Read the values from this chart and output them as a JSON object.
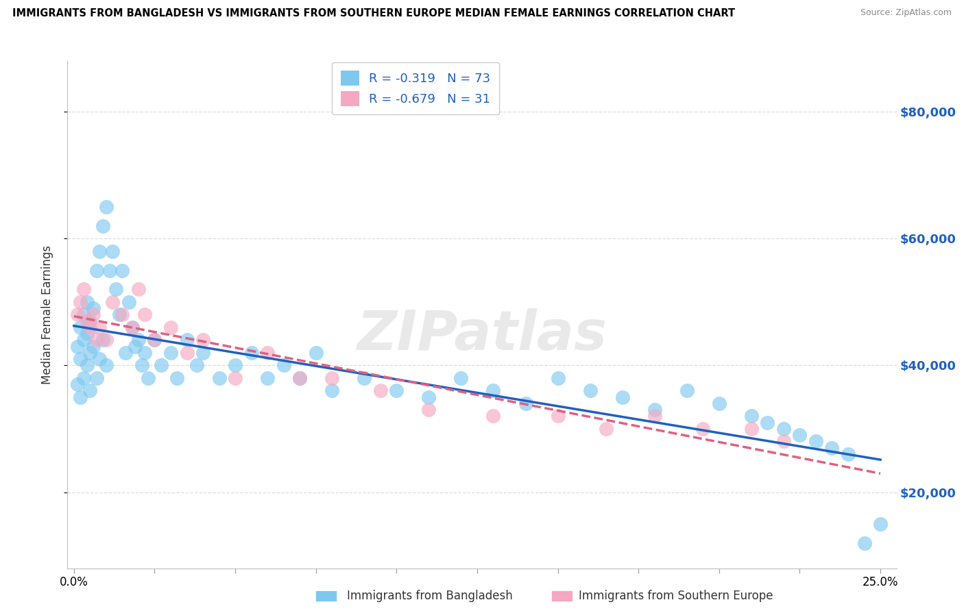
{
  "title": "IMMIGRANTS FROM BANGLADESH VS IMMIGRANTS FROM SOUTHERN EUROPE MEDIAN FEMALE EARNINGS CORRELATION CHART",
  "source": "Source: ZipAtlas.com",
  "ylabel": "Median Female Earnings",
  "ytick_vals": [
    20000,
    40000,
    60000,
    80000
  ],
  "ytick_labels": [
    "$20,000",
    "$40,000",
    "$60,000",
    "$80,000"
  ],
  "xlim_min": -0.002,
  "xlim_max": 0.255,
  "ylim_min": 8000,
  "ylim_max": 88000,
  "color_blue": "#7EC8F0",
  "color_pink": "#F5A8C0",
  "line_blue": "#2060C0",
  "line_pink": "#E06080",
  "r1": "-0.319",
  "n1": "73",
  "r2": "-0.679",
  "n2": "31",
  "watermark": "ZIPatlas",
  "legend1_label": "Immigrants from Bangladesh",
  "legend2_label": "Immigrants from Southern Europe",
  "background_color": "#FFFFFF",
  "grid_color": "#DDDDDD",
  "blue_x": [
    0.001,
    0.001,
    0.002,
    0.002,
    0.002,
    0.003,
    0.003,
    0.003,
    0.004,
    0.004,
    0.004,
    0.005,
    0.005,
    0.005,
    0.006,
    0.006,
    0.007,
    0.007,
    0.008,
    0.008,
    0.009,
    0.009,
    0.01,
    0.01,
    0.011,
    0.012,
    0.013,
    0.014,
    0.015,
    0.016,
    0.017,
    0.018,
    0.019,
    0.02,
    0.021,
    0.022,
    0.023,
    0.025,
    0.027,
    0.03,
    0.032,
    0.035,
    0.038,
    0.04,
    0.045,
    0.05,
    0.055,
    0.06,
    0.065,
    0.07,
    0.075,
    0.08,
    0.09,
    0.1,
    0.11,
    0.12,
    0.13,
    0.14,
    0.15,
    0.16,
    0.17,
    0.18,
    0.19,
    0.2,
    0.21,
    0.215,
    0.22,
    0.225,
    0.23,
    0.235,
    0.24,
    0.245,
    0.25
  ],
  "blue_y": [
    43000,
    37000,
    46000,
    41000,
    35000,
    48000,
    44000,
    38000,
    50000,
    45000,
    40000,
    47000,
    42000,
    36000,
    49000,
    43000,
    55000,
    38000,
    58000,
    41000,
    62000,
    44000,
    65000,
    40000,
    55000,
    58000,
    52000,
    48000,
    55000,
    42000,
    50000,
    46000,
    43000,
    44000,
    40000,
    42000,
    38000,
    44000,
    40000,
    42000,
    38000,
    44000,
    40000,
    42000,
    38000,
    40000,
    42000,
    38000,
    40000,
    38000,
    42000,
    36000,
    38000,
    36000,
    35000,
    38000,
    36000,
    34000,
    38000,
    36000,
    35000,
    33000,
    36000,
    34000,
    32000,
    31000,
    30000,
    29000,
    28000,
    27000,
    26000,
    12000,
    15000
  ],
  "pink_x": [
    0.001,
    0.002,
    0.003,
    0.004,
    0.005,
    0.006,
    0.007,
    0.008,
    0.01,
    0.012,
    0.015,
    0.018,
    0.02,
    0.022,
    0.025,
    0.03,
    0.035,
    0.04,
    0.05,
    0.06,
    0.07,
    0.08,
    0.095,
    0.11,
    0.13,
    0.15,
    0.165,
    0.18,
    0.195,
    0.21,
    0.22
  ],
  "pink_y": [
    48000,
    50000,
    52000,
    47000,
    46000,
    48000,
    44000,
    46000,
    44000,
    50000,
    48000,
    46000,
    52000,
    48000,
    44000,
    46000,
    42000,
    44000,
    38000,
    42000,
    38000,
    38000,
    36000,
    33000,
    32000,
    32000,
    30000,
    32000,
    30000,
    30000,
    28000
  ]
}
